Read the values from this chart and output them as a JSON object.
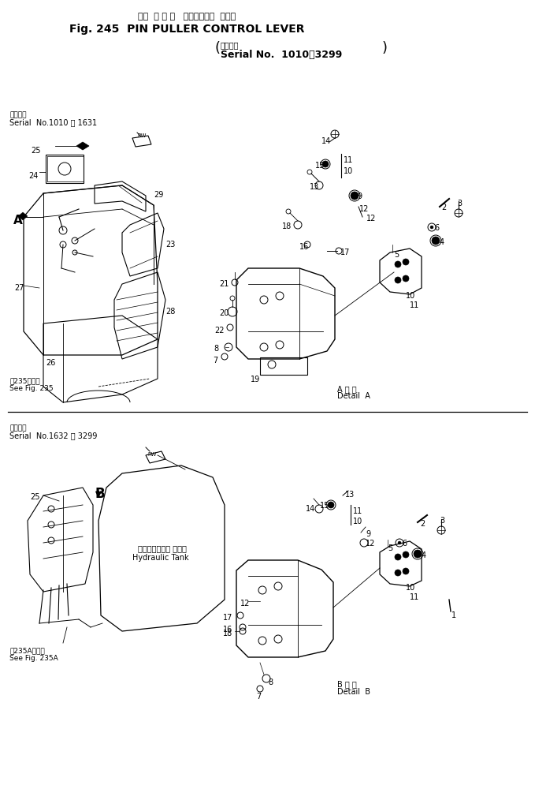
{
  "title_jp": "ピン  プ ラ ー   コントロール  レバー",
  "title_en": "Fig. 245  PIN PULLER CONTROL LEVER",
  "serial_all_jp": "適用号機",
  "serial_all_en": "Serial No.  1010～3299",
  "sec1_jp": "適用号機",
  "sec1_en": "Serial  No.1010 ～ 1631",
  "sec2_jp": "適用号機",
  "sec2_en": "Serial  No.1632 ～ 3299",
  "see235": "第235図参照\nSee Fig. 235",
  "see235A": "第235A図参照\nSee Fig. 235A",
  "detailA_jp": "A 詳 細",
  "detailA_en": "Detail  A",
  "detailB_jp": "B 詳 細",
  "detailB_en": "Detail  B",
  "hyd_jp": "ハイドロリック タンク",
  "hyd_en": "Hydraulic Tank",
  "bg": "#ffffff"
}
